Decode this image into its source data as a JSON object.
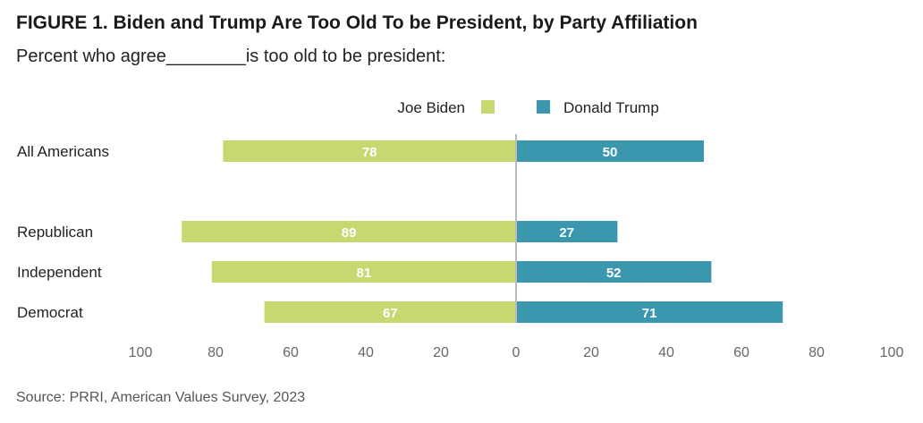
{
  "title": "FIGURE 1.  Biden and Trump Are Too Old To be President, by Party Affiliation",
  "subtitle": "Percent who agree________is too old to be president:",
  "source": "Source: PRRI, American Values Survey, 2023",
  "colors": {
    "biden": "#c5d970",
    "trump": "#3a97ad",
    "axis": "#bbbbbb"
  },
  "chart_data": {
    "type": "bar",
    "orientation": "diverging-horizontal",
    "categories": [
      "All Americans",
      "Republican",
      "Independent",
      "Democrat"
    ],
    "series": [
      {
        "name": "Joe Biden",
        "values": [
          78,
          89,
          81,
          67
        ]
      },
      {
        "name": "Donald Trump",
        "values": [
          50,
          27,
          52,
          71
        ]
      }
    ],
    "x_ticks": [
      "100",
      "80",
      "60",
      "40",
      "20",
      "0",
      "20",
      "40",
      "60",
      "80",
      "100"
    ],
    "xlim": [
      -100,
      100
    ],
    "legend_position": "top"
  }
}
